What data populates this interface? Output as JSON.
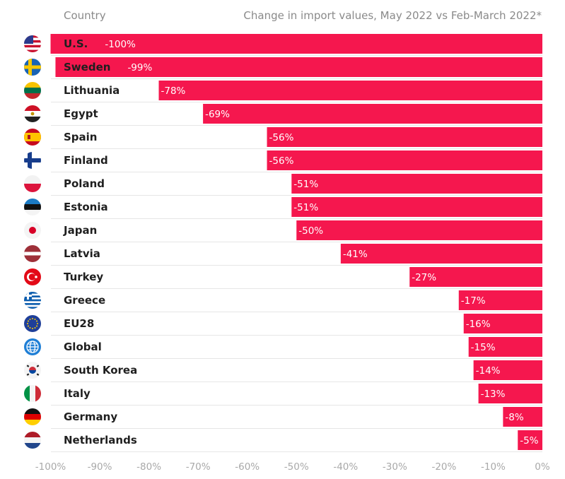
{
  "header": {
    "country_label": "Country",
    "value_label": "Change in import values, May 2022 vs Feb-March 2022*"
  },
  "colors": {
    "bar": "#f5174e",
    "row_line": "#e6e6e6",
    "country_text": "#1f1f1f",
    "axis_text": "#a9a9a9"
  },
  "chart_data": {
    "type": "bar",
    "orientation": "horizontal",
    "title": "",
    "xlabel": "Change in import values, May 2022 vs Feb-March 2022*",
    "ylabel": "Country",
    "xlim": [
      -100,
      0
    ],
    "ticks": [
      "-100%",
      "-90%",
      "-80%",
      "-70%",
      "-60%",
      "-50%",
      "-40%",
      "-30%",
      "-20%",
      "-10%",
      "0%"
    ],
    "categories": [
      "U.S.",
      "Sweden",
      "Lithuania",
      "Egypt",
      "Spain",
      "Finland",
      "Poland",
      "Estonia",
      "Japan",
      "Latvia",
      "Turkey",
      "Greece",
      "EU28",
      "Global",
      "South Korea",
      "Italy",
      "Germany",
      "Netherlands"
    ],
    "values": [
      -100,
      -99,
      -78,
      -69,
      -56,
      -56,
      -51,
      -51,
      -50,
      -41,
      -27,
      -17,
      -16,
      -15,
      -14,
      -13,
      -8,
      -5
    ],
    "labels": [
      "-100%",
      "-99%",
      "-78%",
      "-69%",
      "-56%",
      "-56%",
      "-51%",
      "-51%",
      "-50%",
      "-41%",
      "-27%",
      "-17%",
      "-16%",
      "-15%",
      "-14%",
      "-13%",
      "-8%",
      "-5%"
    ],
    "flag_icons": [
      "us-flag-icon",
      "sweden-flag-icon",
      "lithuania-flag-icon",
      "egypt-flag-icon",
      "spain-flag-icon",
      "finland-flag-icon",
      "poland-flag-icon",
      "estonia-flag-icon",
      "japan-flag-icon",
      "latvia-flag-icon",
      "turkey-flag-icon",
      "greece-flag-icon",
      "eu-flag-icon",
      "globe-icon",
      "south-korea-flag-icon",
      "italy-flag-icon",
      "germany-flag-icon",
      "netherlands-flag-icon"
    ],
    "grid": false,
    "legend": "none"
  }
}
